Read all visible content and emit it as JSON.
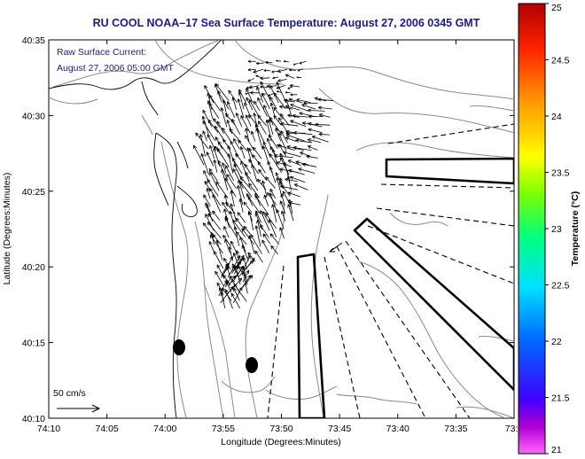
{
  "title": "RU COOL  NOAA–17  Sea Surface Temperature:  August 27, 2006 0345 GMT",
  "annotation": {
    "line1": "Raw Surface Current:",
    "line2": "August 27, 2006 05:00 GMT"
  },
  "scale_label": "50 cm/s",
  "axes": {
    "xlabel": "Longitude (Degrees:Minutes)",
    "ylabel": "Latitude (Degrees:Minutes)",
    "x_ticks": [
      "74:10",
      "74:05",
      "74:00",
      "73:55",
      "73:50",
      "73:45",
      "73:40",
      "73:35",
      "73:3"
    ],
    "y_ticks": [
      "40:35",
      "40:30",
      "40:25",
      "40:20",
      "40:15",
      "40:10"
    ]
  },
  "colorbar": {
    "label": "Temperature (°C)",
    "ticks": [
      "25",
      "24.5",
      "24",
      "23.5",
      "23",
      "22.5",
      "22",
      "21.5",
      "21"
    ],
    "min": 21,
    "max": 25
  }
}
